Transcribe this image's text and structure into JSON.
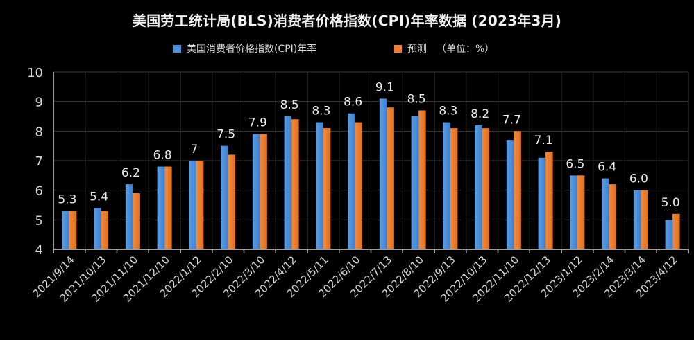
{
  "chart_data": {
    "type": "bar",
    "title": "美国劳工统计局(BLS)消费者价格指数(CPI)年率数据 (2023年3月)",
    "xlabel": "",
    "ylabel": "",
    "ylim": [
      4,
      10
    ],
    "yticks": [
      "4",
      "5",
      "6",
      "7",
      "8",
      "9",
      "10"
    ],
    "grid": true,
    "legend_position": "top",
    "categories": [
      "2021/9/14",
      "2021/10/13",
      "2021/11/10",
      "2021/12/10",
      "2022/1/12",
      "2022/2/10",
      "2022/3/10",
      "2022/4/12",
      "2022/5/11",
      "2022/6/10",
      "2022/7/13",
      "2022/8/10",
      "2022/9/13",
      "2022/10/13",
      "2022/11/10",
      "2022/12/13",
      "2023/1/12",
      "2023/2/14",
      "2023/3/14",
      "2023/4/12"
    ],
    "series": [
      {
        "name": "美国消费者价格指数(CPI)年率",
        "color": "#4a90dc",
        "values": [
          5.3,
          5.4,
          6.2,
          6.8,
          7.0,
          7.5,
          7.9,
          8.5,
          8.3,
          8.6,
          9.1,
          8.5,
          8.3,
          8.2,
          7.7,
          7.1,
          6.5,
          6.4,
          6.0,
          5.0
        ],
        "data_labels": [
          "5.3",
          "5.4",
          "6.2",
          "6.8",
          "7",
          "7.5",
          "7.9",
          "8.5",
          "8.3",
          "8.6",
          "9.1",
          "8.5",
          "8.3",
          "8.2",
          "7.7",
          "7.1",
          "6.5",
          "6.4",
          "6.0",
          "5.0"
        ]
      },
      {
        "name": "预测",
        "color": "#ed7d31",
        "values": [
          5.3,
          5.3,
          5.9,
          6.8,
          7.0,
          7.2,
          7.9,
          8.4,
          8.1,
          8.3,
          8.8,
          8.7,
          8.1,
          8.1,
          8.0,
          7.3,
          6.5,
          6.2,
          6.0,
          5.2
        ]
      }
    ]
  },
  "legend": {
    "series1_label": "美国消费者价格指数(CPI)年率",
    "series2_label": "预测",
    "unit_note": "（单位：%）"
  }
}
